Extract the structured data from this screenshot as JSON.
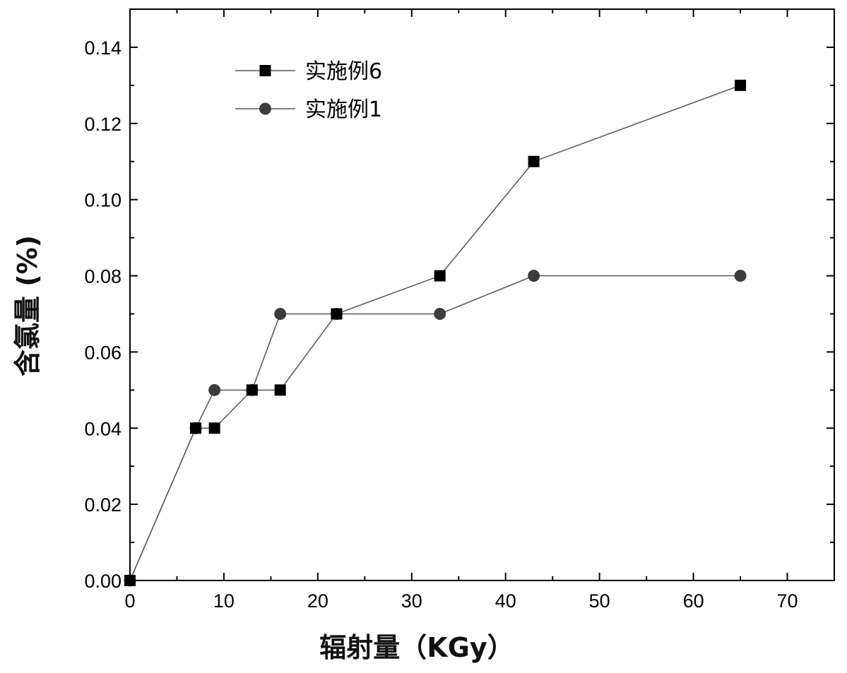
{
  "chart_data": {
    "type": "line",
    "xlabel": "辐射量（KGy）",
    "ylabel": "含氯量 (%)",
    "xlim": [
      0,
      75
    ],
    "ylim": [
      0,
      0.15
    ],
    "xticks": [
      "0",
      "10",
      "20",
      "30",
      "40",
      "50",
      "60",
      "70"
    ],
    "yticks": [
      "0.00",
      "0.02",
      "0.04",
      "0.06",
      "0.08",
      "0.10",
      "0.12",
      "0.14"
    ],
    "grid": false,
    "legend_position": "top-left",
    "series": [
      {
        "name": "实施例6",
        "marker": "square",
        "color": "#000000",
        "x": [
          0,
          7,
          9,
          13,
          16,
          22,
          33,
          43,
          65
        ],
        "y": [
          0.0,
          0.04,
          0.04,
          0.05,
          0.05,
          0.07,
          0.08,
          0.11,
          0.13
        ]
      },
      {
        "name": "实施例1",
        "marker": "circle",
        "color": "#3c3c3c",
        "x": [
          0,
          7,
          9,
          13,
          16,
          22,
          33,
          43,
          65
        ],
        "y": [
          0.0,
          0.04,
          0.05,
          0.05,
          0.07,
          0.07,
          0.07,
          0.08,
          0.08
        ]
      }
    ]
  }
}
